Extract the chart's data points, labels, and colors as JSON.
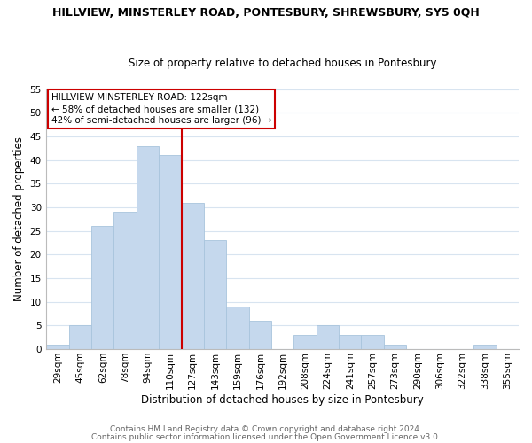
{
  "title": "HILLVIEW, MINSTERLEY ROAD, PONTESBURY, SHREWSBURY, SY5 0QH",
  "subtitle": "Size of property relative to detached houses in Pontesbury",
  "xlabel": "Distribution of detached houses by size in Pontesbury",
  "ylabel": "Number of detached properties",
  "bar_labels": [
    "29sqm",
    "45sqm",
    "62sqm",
    "78sqm",
    "94sqm",
    "110sqm",
    "127sqm",
    "143sqm",
    "159sqm",
    "176sqm",
    "192sqm",
    "208sqm",
    "224sqm",
    "241sqm",
    "257sqm",
    "273sqm",
    "290sqm",
    "306sqm",
    "322sqm",
    "338sqm",
    "355sqm"
  ],
  "bar_values": [
    1,
    5,
    26,
    29,
    43,
    41,
    31,
    23,
    9,
    6,
    0,
    3,
    5,
    3,
    3,
    1,
    0,
    0,
    0,
    1,
    0
  ],
  "bar_color": "#c5d8ed",
  "bar_edge_color": "#a8c4dd",
  "vline_color": "#cc0000",
  "vline_x": 6.0,
  "ylim": [
    0,
    55
  ],
  "yticks": [
    0,
    5,
    10,
    15,
    20,
    25,
    30,
    35,
    40,
    45,
    50,
    55
  ],
  "annotation_title": "HILLVIEW MINSTERLEY ROAD: 122sqm",
  "annotation_line1": "← 58% of detached houses are smaller (132)",
  "annotation_line2": "42% of semi-detached houses are larger (96) →",
  "footer1": "Contains HM Land Registry data © Crown copyright and database right 2024.",
  "footer2": "Contains public sector information licensed under the Open Government Licence v3.0.",
  "background_color": "#ffffff",
  "grid_color": "#d8e4f0",
  "title_fontsize": 9,
  "subtitle_fontsize": 8.5,
  "axis_label_fontsize": 8.5,
  "tick_fontsize": 7.5,
  "annotation_fontsize": 7.5,
  "footer_fontsize": 6.5
}
